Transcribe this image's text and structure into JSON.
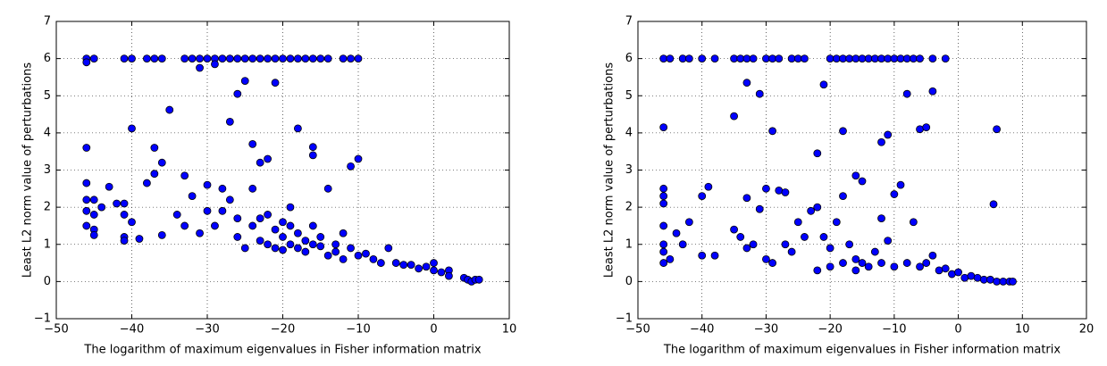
{
  "chart_data": [
    {
      "type": "scatter",
      "xlabel": "The logarithm of maximum eigenvalues in Fisher information matrix",
      "ylabel": "Least L2 norm value of perturbations",
      "color": "#0000ff",
      "grid": true,
      "xlim": [
        -50,
        10
      ],
      "xticks": [
        {
          "value": -50,
          "label": "−50"
        },
        {
          "value": -40,
          "label": "−40"
        },
        {
          "value": -30,
          "label": "−30"
        },
        {
          "value": -20,
          "label": "−20"
        },
        {
          "value": -10,
          "label": "−10"
        },
        0,
        10
      ],
      "ylim": [
        -1,
        7
      ],
      "yticks": [
        {
          "value": -1,
          "label": "−1"
        },
        0,
        1,
        2,
        3,
        4,
        5,
        6,
        7
      ],
      "x": [
        -46,
        -45,
        -41,
        -40,
        -38,
        -37,
        -36,
        -33,
        -32,
        -31,
        -30,
        -29,
        -28,
        -27,
        -26,
        -25,
        -24,
        -23,
        -22,
        -21,
        -20,
        -19,
        -18,
        -17,
        -16,
        -15,
        -14,
        -12,
        -11,
        -10,
        -46,
        -31,
        -29,
        -25,
        -26,
        -21,
        -35,
        -27,
        -40,
        -18,
        -46,
        -37,
        -16,
        -16,
        -24,
        -46,
        -46,
        -45,
        -46,
        -45,
        -44,
        -46,
        -45,
        -45,
        -43,
        -42,
        -41,
        -41,
        -40,
        -41,
        -41,
        -39,
        -36,
        -36,
        -37,
        -38,
        -33,
        -30,
        -28,
        -34,
        -33,
        -32,
        -31,
        -30,
        -29,
        -28,
        -27,
        -26,
        -26,
        -25,
        -24,
        -24,
        -23,
        -22,
        -23,
        -22,
        -21,
        -21,
        -20,
        -20,
        -19,
        -19,
        -18,
        -18,
        -17,
        -17,
        -16,
        -15,
        -15,
        -14,
        -14,
        -13,
        -13,
        -12,
        -12,
        -11,
        -10,
        -11,
        -10,
        -9,
        -8,
        -7,
        -6,
        -5,
        -4,
        -3,
        -2,
        -1,
        0,
        0,
        1,
        2,
        2,
        4,
        4.5,
        5,
        5.5,
        6,
        -23,
        -22,
        -20,
        -19,
        -16
      ],
      "values": [
        6,
        6,
        6,
        6,
        6,
        6,
        6,
        6,
        6,
        6,
        6,
        6,
        6,
        6,
        6,
        6,
        6,
        6,
        6,
        6,
        6,
        6,
        6,
        6,
        6,
        6,
        6,
        6,
        6,
        6,
        5.9,
        5.75,
        5.85,
        5.4,
        5.05,
        5.35,
        4.62,
        4.3,
        4.12,
        4.12,
        3.6,
        3.6,
        3.62,
        3.4,
        3.7,
        2.65,
        2.2,
        2.2,
        1.9,
        1.8,
        2.0,
        1.5,
        1.4,
        1.25,
        2.55,
        2.1,
        2.1,
        1.8,
        1.6,
        1.2,
        1.1,
        1.15,
        1.25,
        3.2,
        2.9,
        2.65,
        2.85,
        2.6,
        2.5,
        1.8,
        1.5,
        2.3,
        1.3,
        1.9,
        1.5,
        1.9,
        2.2,
        1.7,
        1.2,
        0.9,
        1.5,
        2.5,
        3.2,
        3.3,
        1.1,
        1.8,
        1.4,
        0.9,
        1.6,
        1.2,
        1.0,
        2.0,
        1.3,
        0.9,
        1.1,
        0.8,
        1.5,
        0.95,
        1.2,
        0.7,
        2.5,
        1.0,
        0.8,
        0.6,
        1.3,
        3.1,
        3.3,
        0.9,
        0.7,
        0.75,
        0.6,
        0.5,
        0.9,
        0.5,
        0.45,
        0.45,
        0.35,
        0.4,
        0.5,
        0.3,
        0.25,
        0.3,
        0.15,
        0.1,
        0.05,
        0.0,
        0.05,
        0.05,
        1.7,
        1.0,
        0.85,
        1.5,
        1.0
      ]
    },
    {
      "type": "scatter",
      "xlabel": "The logarithm of maximum eigenvalues in Fisher information matrix",
      "ylabel": "Least L2 norm value of perturbations",
      "color": "#0000ff",
      "grid": true,
      "xlim": [
        -50,
        20
      ],
      "xticks": [
        {
          "value": -50,
          "label": "−50"
        },
        {
          "value": -40,
          "label": "−40"
        },
        {
          "value": -30,
          "label": "−30"
        },
        {
          "value": -20,
          "label": "−20"
        },
        {
          "value": -10,
          "label": "−10"
        },
        0,
        10,
        20
      ],
      "ylim": [
        -1,
        7
      ],
      "yticks": [
        {
          "value": -1,
          "label": "−1"
        },
        0,
        1,
        2,
        3,
        4,
        5,
        6,
        7
      ],
      "x": [
        -46,
        -45,
        -43,
        -42,
        -40,
        -38,
        -35,
        -34,
        -33,
        -32,
        -30,
        -29,
        -28,
        -26,
        -25,
        -24,
        -20,
        -19,
        -18,
        -17,
        -16,
        -15,
        -14,
        -13,
        -12,
        -11,
        -10,
        -9,
        -8,
        -7,
        -6,
        -4,
        -2,
        -33,
        -31,
        -21,
        -8,
        -4,
        -35,
        -29,
        -18,
        -6,
        -5,
        6,
        -46,
        -22,
        -12,
        -11,
        -16,
        -15,
        -46,
        -46,
        -46,
        -46,
        -46,
        -46,
        -46,
        -45,
        -44,
        -43,
        -42,
        -40,
        -39,
        -40,
        -38,
        -33,
        -30,
        -28,
        -27,
        -31,
        -35,
        -34,
        -33,
        -32,
        -30,
        -29,
        -27,
        -26,
        -25,
        -24,
        -23,
        -22,
        -21,
        -20,
        -19,
        -18,
        -17,
        -16,
        -15,
        -14,
        -13,
        -12,
        -11,
        -10,
        -9,
        -8,
        -7,
        -6,
        -5,
        -4,
        -3,
        -2,
        -1,
        0,
        1,
        2,
        3,
        4,
        5,
        5.5,
        6,
        7,
        8,
        8.5,
        -22,
        -20,
        -18,
        -16,
        -12,
        -10
      ],
      "values": [
        6,
        6,
        6,
        6,
        6,
        6,
        6,
        6,
        6,
        6,
        6,
        6,
        6,
        6,
        6,
        6,
        6,
        6,
        6,
        6,
        6,
        6,
        6,
        6,
        6,
        6,
        6,
        6,
        6,
        6,
        6,
        6,
        6,
        5.35,
        5.05,
        5.3,
        5.05,
        5.12,
        4.45,
        4.05,
        4.05,
        4.1,
        4.15,
        4.1,
        4.15,
        3.45,
        3.75,
        3.95,
        2.85,
        2.7,
        2.5,
        2.3,
        2.1,
        1.5,
        1.0,
        0.8,
        0.5,
        0.6,
        1.3,
        1.0,
        1.6,
        2.3,
        2.55,
        0.7,
        0.7,
        2.25,
        2.5,
        2.45,
        2.4,
        1.95,
        1.4,
        1.2,
        0.9,
        1.0,
        0.6,
        0.5,
        1.0,
        0.8,
        1.6,
        1.2,
        1.9,
        2.0,
        1.2,
        0.9,
        1.6,
        2.3,
        1.0,
        0.6,
        0.5,
        0.4,
        0.8,
        1.7,
        1.1,
        2.35,
        2.6,
        0.5,
        1.6,
        0.4,
        0.5,
        0.7,
        0.3,
        0.35,
        0.2,
        0.25,
        0.1,
        0.15,
        0.1,
        0.05,
        0.05,
        2.08,
        0.0,
        0.0,
        0.0,
        0.0,
        0.3,
        0.4,
        0.5,
        0.3,
        0.5,
        0.4
      ]
    }
  ]
}
